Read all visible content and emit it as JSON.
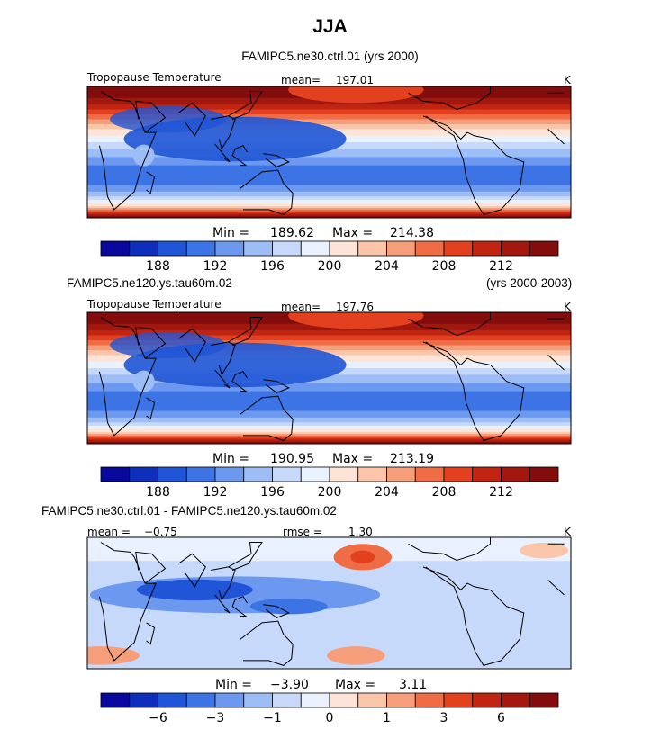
{
  "title": "JJA",
  "colors": [
    "#08089c",
    "#0d2fbc",
    "#1f55d6",
    "#3c74e6",
    "#6c98ef",
    "#9cbdf5",
    "#c7d9fa",
    "#e8f1fd",
    "#fde4d6",
    "#fbc5aa",
    "#f69d79",
    "#ef6c45",
    "#e2401e",
    "#c12512",
    "#a2170e",
    "#830c0c"
  ],
  "panels": [
    {
      "subtitle": "FAMIPC5.ne30.ctrl.01 (yrs 2000)",
      "subtitle_right": "",
      "field_label": "Tropopause Temperature",
      "mean_label": "mean=",
      "mean_value": "197.01",
      "units": "K",
      "min_label": "Min =",
      "min_value": "189.62",
      "max_label": "Max =",
      "max_value": "214.38",
      "kind": "abs",
      "tick_labels": [
        "188",
        "192",
        "196",
        "200",
        "204",
        "208",
        "212"
      ]
    },
    {
      "subtitle": "FAMIPC5.ne120.ys.tau60m.02",
      "subtitle_right": "(yrs 2000-2003)",
      "field_label": "Tropopause Temperature",
      "mean_label": "mean=",
      "mean_value": "197.76",
      "units": "K",
      "min_label": "Min =",
      "min_value": "190.95",
      "max_label": "Max =",
      "max_value": "213.19",
      "kind": "abs",
      "tick_labels": [
        "188",
        "192",
        "196",
        "200",
        "204",
        "208",
        "212"
      ]
    },
    {
      "subtitle": "FAMIPC5.ne30.ctrl.01 - FAMIPC5.ne120.ys.tau60m.02",
      "subtitle_right": "",
      "field_label": "mean =",
      "mean_label": "rmse =",
      "mean_value": "1.30",
      "field_value": "−0.75",
      "units": "K",
      "min_label": "Min =",
      "min_value": "−3.90",
      "max_label": "Max =",
      "max_value": "3.11",
      "kind": "diff",
      "tick_labels": [
        "−6",
        "−3",
        "−1",
        "0",
        "1",
        "3",
        "6"
      ]
    }
  ],
  "chart_data": [
    {
      "type": "heatmap",
      "title": "FAMIPC5.ne30.ctrl.01 (yrs 2000)",
      "variable": "Tropopause Temperature",
      "units": "K",
      "mean": 197.01,
      "min": 189.62,
      "max": 214.38,
      "colorbar_ticks": [
        188,
        192,
        196,
        200,
        204,
        208,
        212
      ]
    },
    {
      "type": "heatmap",
      "title": "FAMIPC5.ne120.ys.tau60m.02 (yrs 2000-2003)",
      "variable": "Tropopause Temperature",
      "units": "K",
      "mean": 197.76,
      "min": 190.95,
      "max": 213.19,
      "colorbar_ticks": [
        188,
        192,
        196,
        200,
        204,
        208,
        212
      ]
    },
    {
      "type": "heatmap",
      "title": "FAMIPC5.ne30.ctrl.01 - FAMIPC5.ne120.ys.tau60m.02",
      "units": "K",
      "mean": -0.75,
      "rmse": 1.3,
      "min": -3.9,
      "max": 3.11,
      "colorbar_ticks": [
        -6,
        -3,
        -1,
        0,
        1,
        3,
        6
      ]
    }
  ]
}
